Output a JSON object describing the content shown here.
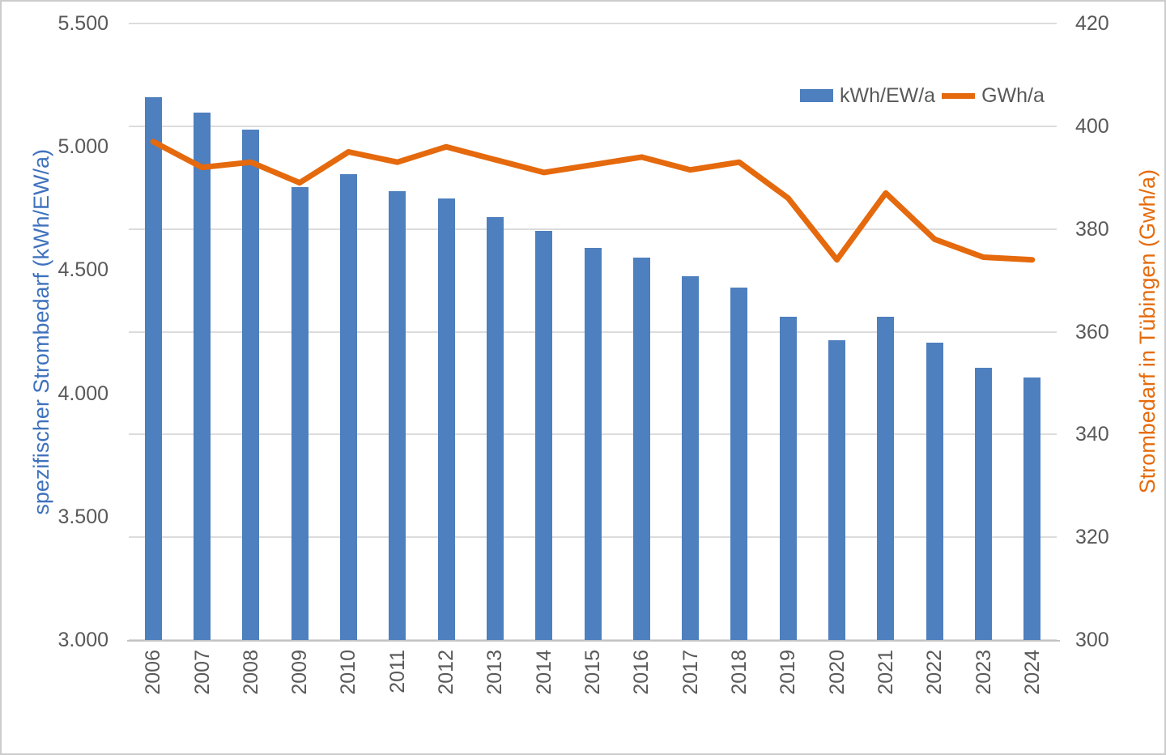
{
  "chart_data": {
    "type": "bar+line combo",
    "title": "",
    "categories": [
      "2006",
      "2007",
      "2008",
      "2009",
      "2010",
      "2011",
      "2012",
      "2013",
      "2014",
      "2015",
      "2016",
      "2017",
      "2018",
      "2019",
      "2020",
      "2021",
      "2022",
      "2023",
      "2024"
    ],
    "series": [
      {
        "name": "kWh/EW/a",
        "type": "bar",
        "axis": "left",
        "color": "#4e7fbe",
        "values": [
          5200,
          5140,
          5070,
          4835,
          4890,
          4820,
          4790,
          4715,
          4660,
          4590,
          4550,
          4475,
          4430,
          4310,
          4215,
          4310,
          4205,
          4105,
          4065
        ]
      },
      {
        "name": "GWh/a",
        "type": "line",
        "axis": "right",
        "color": "#e5690d",
        "values": [
          397,
          392,
          393,
          389,
          395,
          393,
          396,
          393.5,
          391,
          392.5,
          394,
          391.5,
          393,
          386,
          374,
          387,
          378,
          374.5,
          374
        ]
      }
    ],
    "left_axis": {
      "title": "spezifischer Strombedarf (kWh/EW/a)",
      "color": "#3f72bd",
      "min": 3000,
      "max": 5500,
      "step": 500,
      "tick_labels": [
        "5.500",
        "5.000",
        "4.500",
        "4.000",
        "3.500",
        "3.000"
      ]
    },
    "right_axis": {
      "title": "Strombedarf in Tübingen (Gwh/a)",
      "color": "#e56b0c",
      "min": 300,
      "max": 420,
      "step": 20,
      "tick_labels": [
        "420",
        "400",
        "380",
        "360",
        "340",
        "320",
        "300"
      ]
    },
    "legend": {
      "position": "top-right",
      "entries": [
        "kWh/EW/a",
        "GWh/a"
      ]
    },
    "grid": "horizontal gridlines aligned to right axis ticks",
    "tick_label_color": "#595959",
    "gridline_color": "#dcdcdc"
  }
}
